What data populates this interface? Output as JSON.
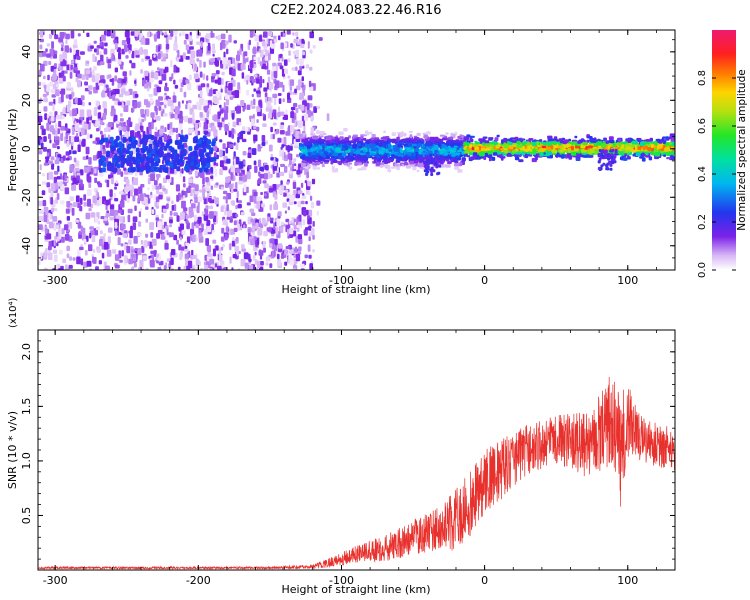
{
  "title": "C2E2.2024.083.22.46.R16",
  "colors": {
    "trace": "#e8302c",
    "axis": "#000000"
  },
  "chart_data": [
    {
      "type": "heatmap",
      "xlabel": "Height of straight line (km)",
      "ylabel": "Frequency (Hz)",
      "xlim": [
        -312,
        133
      ],
      "ylim": [
        -50,
        49
      ],
      "xticks": [
        -300,
        -200,
        -100,
        0,
        100
      ],
      "xtick_labels": [
        "-300",
        "-200",
        "-100",
        "0",
        "100"
      ],
      "yticks": [
        -40,
        -20,
        0,
        20,
        40
      ],
      "ytick_labels": [
        "-40",
        "-20",
        "0",
        "20",
        "40"
      ],
      "colorbar": {
        "label": "Normalized spectral amplitude",
        "range": [
          0,
          1
        ],
        "ticks": [
          0.0,
          0.2,
          0.4,
          0.6,
          0.8
        ],
        "tick_labels": [
          "0.0",
          "0.2",
          "0.4",
          "0.6",
          "0.8"
        ],
        "colormap": "rainbow"
      },
      "regions": [
        {
          "x_range": [
            -312,
            -120
          ],
          "freq_range": [
            -50,
            49
          ],
          "amplitude": [
            0.02,
            0.15
          ],
          "description_key": "broadband noise"
        },
        {
          "x_range": [
            -130,
            -15
          ],
          "freq_center": 0,
          "freq_halfwidth": 6,
          "amplitude": [
            0.1,
            0.45
          ]
        },
        {
          "x_range": [
            -15,
            133
          ],
          "freq_center": 1,
          "freq_halfwidth": 2,
          "amplitude": [
            0.6,
            0.95
          ]
        }
      ]
    },
    {
      "type": "line",
      "xlabel": "Height of straight line (km)",
      "ylabel": "SNR (10 * v/v)",
      "y_multiplier": "(x10⁴)",
      "xlim": [
        -312,
        133
      ],
      "ylim": [
        0,
        2.2
      ],
      "xticks": [
        -300,
        -200,
        -100,
        0,
        100
      ],
      "xtick_labels": [
        "-300",
        "-200",
        "-100",
        "0",
        "100"
      ],
      "yticks": [
        0.5,
        1.0,
        1.5,
        2.0
      ],
      "ytick_labels": [
        "0.5",
        "1.0",
        "1.5",
        "2.0"
      ],
      "series": [
        {
          "x": [
            -312,
            -250,
            -200,
            -150,
            -120,
            -110,
            -100,
            -90,
            -80,
            -70,
            -60,
            -50,
            -40,
            -30,
            -20,
            -10,
            0,
            10,
            20,
            30,
            40,
            50,
            60,
            70,
            80,
            90,
            95,
            100,
            110,
            120,
            133
          ],
          "y": [
            0.02,
            0.02,
            0.02,
            0.02,
            0.03,
            0.06,
            0.1,
            0.14,
            0.17,
            0.2,
            0.24,
            0.3,
            0.34,
            0.4,
            0.47,
            0.6,
            0.8,
            0.9,
            1.0,
            1.1,
            1.15,
            1.2,
            1.18,
            1.15,
            1.25,
            1.4,
            1.1,
            1.35,
            1.2,
            1.15,
            1.1
          ],
          "noise": [
            0.01,
            0.01,
            0.01,
            0.01,
            0.02,
            0.04,
            0.06,
            0.08,
            0.1,
            0.12,
            0.14,
            0.16,
            0.18,
            0.2,
            0.3,
            0.3,
            0.3,
            0.28,
            0.26,
            0.24,
            0.22,
            0.22,
            0.26,
            0.3,
            0.35,
            0.45,
            0.55,
            0.35,
            0.22,
            0.2,
            0.2
          ]
        }
      ]
    }
  ]
}
